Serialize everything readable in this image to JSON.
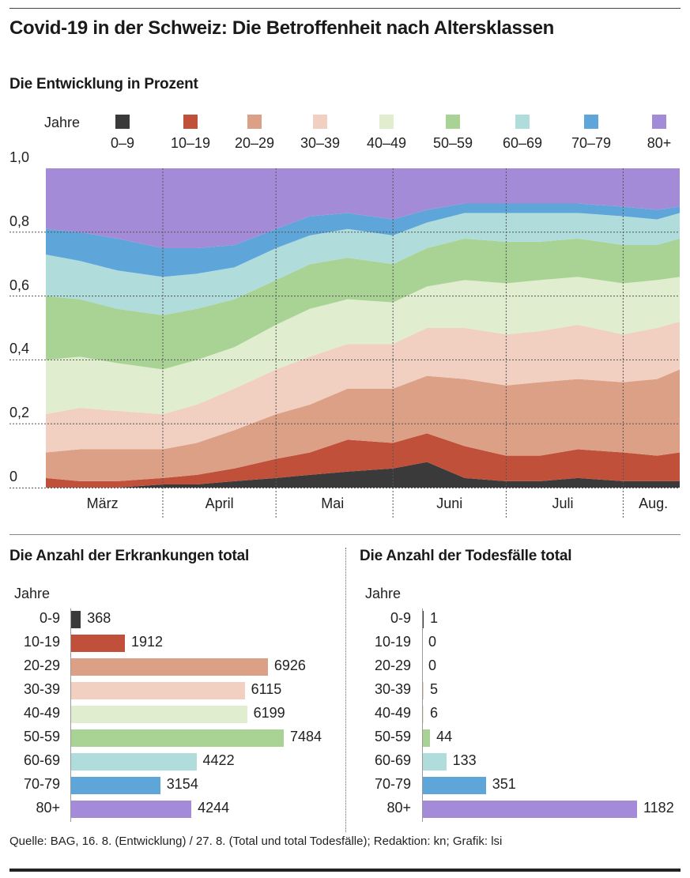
{
  "title": "Covid-19 in der Schweiz: Die Betroffenheit nach Altersklassen",
  "source": "Quelle: BAG, 16. 8. (Entwicklung) / 27. 8. (Total und total Todesfälle); Redaktion: kn; Grafik: lsi",
  "colors": {
    "0-9": "#3a3a3a",
    "10-19": "#c0503a",
    "20-29": "#dca087",
    "30-39": "#f1cfc1",
    "40-49": "#e0eecf",
    "50-59": "#a9d394",
    "60-69": "#b0dcdc",
    "70-79": "#5ea6d9",
    "80+": "#a48bd8"
  },
  "chart_data": [
    {
      "type": "area",
      "title": "Die Entwicklung in Prozent",
      "legend_title": "Jahre",
      "legend_position": "top",
      "series_names": [
        "0-9",
        "10-19",
        "20-29",
        "30-39",
        "40-49",
        "50-59",
        "60-69",
        "70-79",
        "80+"
      ],
      "y_ticks": [
        "1,0",
        "0,8",
        "0,6",
        "0,4",
        "0,2",
        "0"
      ],
      "ylim": [
        0,
        1
      ],
      "x_labels": [
        "März",
        "April",
        "Mai",
        "Juni",
        "Juli",
        "Aug."
      ],
      "x_range": [
        "2020-03-01",
        "2020-08-16"
      ],
      "grid": true,
      "x": [
        "2020-03-01",
        "2020-03-10",
        "2020-03-20",
        "2020-04-01",
        "2020-04-10",
        "2020-04-20",
        "2020-05-01",
        "2020-05-10",
        "2020-05-20",
        "2020-06-01",
        "2020-06-10",
        "2020-06-20",
        "2020-07-01",
        "2020-07-10",
        "2020-07-20",
        "2020-08-01",
        "2020-08-10",
        "2020-08-16"
      ],
      "series": [
        {
          "name": "0-9",
          "values": [
            0.0,
            0.0,
            0.0,
            0.01,
            0.01,
            0.02,
            0.03,
            0.04,
            0.05,
            0.06,
            0.08,
            0.03,
            0.02,
            0.02,
            0.03,
            0.02,
            0.02,
            0.02
          ]
        },
        {
          "name": "10-19",
          "values": [
            0.03,
            0.02,
            0.02,
            0.02,
            0.03,
            0.04,
            0.06,
            0.07,
            0.1,
            0.08,
            0.09,
            0.1,
            0.08,
            0.08,
            0.09,
            0.09,
            0.08,
            0.09
          ]
        },
        {
          "name": "20-29",
          "values": [
            0.08,
            0.1,
            0.1,
            0.09,
            0.1,
            0.12,
            0.14,
            0.15,
            0.16,
            0.17,
            0.18,
            0.21,
            0.22,
            0.23,
            0.22,
            0.22,
            0.24,
            0.26
          ]
        },
        {
          "name": "30-39",
          "values": [
            0.12,
            0.13,
            0.12,
            0.11,
            0.12,
            0.13,
            0.14,
            0.15,
            0.14,
            0.14,
            0.15,
            0.16,
            0.16,
            0.16,
            0.17,
            0.15,
            0.16,
            0.15
          ]
        },
        {
          "name": "40-49",
          "values": [
            0.17,
            0.16,
            0.15,
            0.14,
            0.14,
            0.13,
            0.14,
            0.15,
            0.14,
            0.13,
            0.13,
            0.15,
            0.16,
            0.16,
            0.15,
            0.16,
            0.15,
            0.14
          ]
        },
        {
          "name": "50-59",
          "values": [
            0.2,
            0.18,
            0.17,
            0.17,
            0.16,
            0.15,
            0.14,
            0.14,
            0.13,
            0.12,
            0.12,
            0.13,
            0.13,
            0.12,
            0.12,
            0.12,
            0.11,
            0.12
          ]
        },
        {
          "name": "60-69",
          "values": [
            0.13,
            0.12,
            0.12,
            0.12,
            0.11,
            0.1,
            0.1,
            0.09,
            0.09,
            0.09,
            0.08,
            0.08,
            0.09,
            0.09,
            0.08,
            0.09,
            0.08,
            0.08
          ]
        },
        {
          "name": "70-79",
          "values": [
            0.08,
            0.09,
            0.1,
            0.09,
            0.08,
            0.07,
            0.06,
            0.06,
            0.05,
            0.05,
            0.04,
            0.03,
            0.03,
            0.03,
            0.03,
            0.03,
            0.03,
            0.02
          ]
        },
        {
          "name": "80+",
          "values": [
            0.19,
            0.2,
            0.22,
            0.25,
            0.25,
            0.24,
            0.19,
            0.15,
            0.14,
            0.16,
            0.13,
            0.11,
            0.11,
            0.11,
            0.11,
            0.12,
            0.13,
            0.12
          ]
        }
      ]
    },
    {
      "type": "bar",
      "title": "Die Anzahl der Erkrankungen total",
      "axis_title": "Jahre",
      "orientation": "horizontal",
      "categories": [
        "0-9",
        "10-19",
        "20-29",
        "30-39",
        "40-49",
        "50-59",
        "60-69",
        "70-79",
        "80+"
      ],
      "values": [
        368,
        1912,
        6926,
        6115,
        6199,
        7484,
        4422,
        3154,
        4244
      ]
    },
    {
      "type": "bar",
      "title": "Die Anzahl der Todesfälle total",
      "axis_title": "Jahre",
      "orientation": "horizontal",
      "categories": [
        "0-9",
        "10-19",
        "20-29",
        "30-39",
        "40-49",
        "50-59",
        "60-69",
        "70-79",
        "80+"
      ],
      "values": [
        1,
        0,
        0,
        5,
        6,
        44,
        133,
        351,
        1182
      ]
    }
  ]
}
